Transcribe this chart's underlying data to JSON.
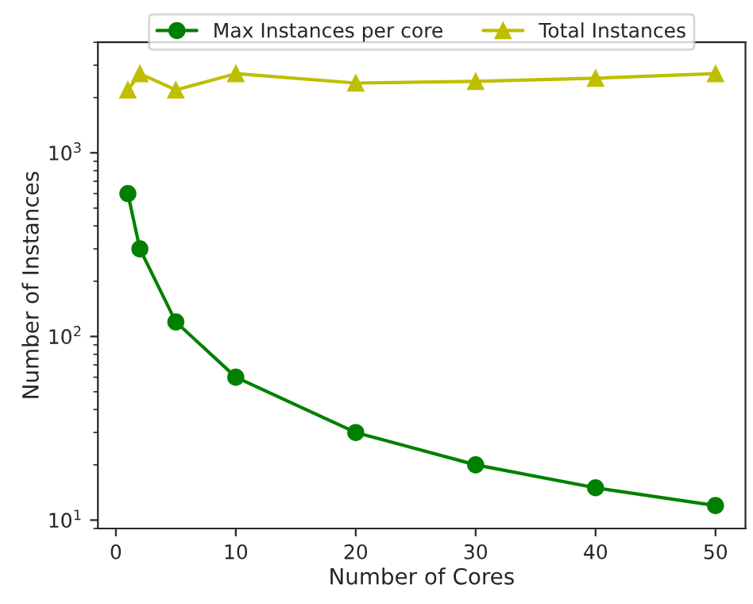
{
  "chart_data": {
    "type": "line",
    "xlabel": "Number of Cores",
    "ylabel": "Number of Instances",
    "x": [
      1,
      2,
      5,
      10,
      20,
      30,
      40,
      50
    ],
    "series": [
      {
        "name": "Max Instances per core",
        "color": "#008000",
        "marker": "circle",
        "values": [
          600,
          300,
          120,
          60,
          30,
          20,
          15,
          12
        ]
      },
      {
        "name": "Total Instances",
        "color": "#bfbf00",
        "marker": "triangle",
        "values": [
          2200,
          2700,
          2200,
          2700,
          2400,
          2450,
          2550,
          2700
        ]
      }
    ],
    "log": "y",
    "xlim": [
      -1.5,
      52.5
    ],
    "ylim": [
      9,
      4000
    ],
    "xticks": [
      0,
      10,
      20,
      30,
      40,
      50
    ],
    "yticks": [
      {
        "value": 10,
        "label": "10$^{1}$"
      },
      {
        "value": 100,
        "label": "10$^{2}$"
      },
      {
        "value": 1000,
        "label": "10$^{3}$"
      }
    ],
    "grid": false,
    "legend": "top",
    "line_style": "solid"
  }
}
